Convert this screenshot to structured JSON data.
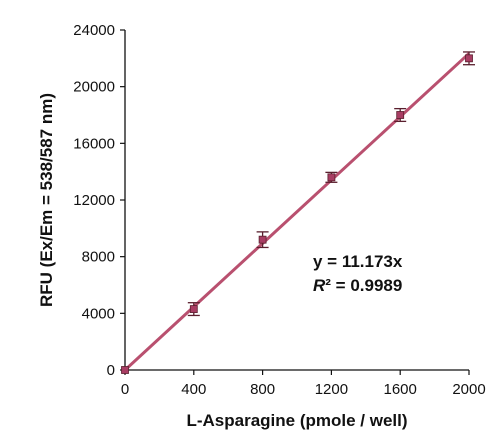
{
  "chart_data": {
    "type": "scatter",
    "title": "",
    "xlabel": "L-Asparagine (pmole / well)",
    "ylabel": "RFU (Ex/Em = 538/587 nm)",
    "xlim": [
      0,
      2000
    ],
    "ylim": [
      0,
      24000
    ],
    "x_ticks": [
      0,
      400,
      800,
      1200,
      1600,
      2000
    ],
    "y_ticks": [
      0,
      4000,
      8000,
      12000,
      16000,
      20000,
      24000
    ],
    "grid": false,
    "legend": "none",
    "series": [
      {
        "x": [
          0,
          400,
          800,
          1200,
          1600,
          2000
        ],
        "y": [
          0,
          4300,
          9200,
          13600,
          18000,
          22000
        ],
        "error": [
          0,
          450,
          550,
          350,
          450,
          450
        ],
        "marker_color": "#a83d63",
        "fit": {
          "slope": 11.173,
          "color": "#b9506f"
        }
      }
    ],
    "annotations": {
      "equation": "y = 11.173x",
      "r2_symbol": "R",
      "r2_rest": "² = 0.9989"
    }
  }
}
